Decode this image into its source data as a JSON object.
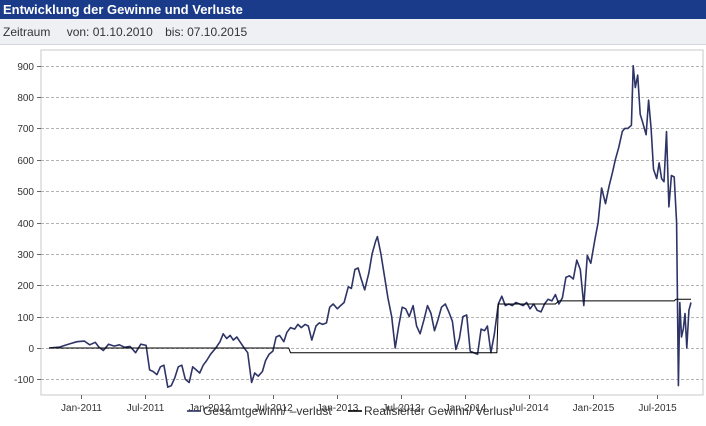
{
  "panel": {
    "title": "Entwicklung der Gewinne und Verluste",
    "range_label": "Zeitraum",
    "from_label": "von: 01.10.2010",
    "to_label": "bis: 07.10.2015"
  },
  "colors": {
    "header_bg": "#1a3a8a",
    "series_total": "#2e3466",
    "series_realized": "#000000",
    "grid": "#9a9a9a"
  },
  "chart_data": {
    "type": "line",
    "title": "",
    "xlabel": "",
    "ylabel": "",
    "xlim": [
      "2010-10-01",
      "2015-10-07"
    ],
    "ylim": [
      -150,
      950
    ],
    "y_ticks": [
      -100,
      0,
      100,
      200,
      300,
      400,
      500,
      600,
      700,
      800,
      900
    ],
    "x_ticks": [
      {
        "date": "2011-01-01",
        "label": "Jan-2011"
      },
      {
        "date": "2011-07-01",
        "label": "Jul-2011"
      },
      {
        "date": "2012-01-01",
        "label": "Jan-2012"
      },
      {
        "date": "2012-07-01",
        "label": "Jul-2012"
      },
      {
        "date": "2013-01-01",
        "label": "Jan-2013"
      },
      {
        "date": "2013-07-01",
        "label": "Jul-2013"
      },
      {
        "date": "2014-01-01",
        "label": "Jan-2014"
      },
      {
        "date": "2014-07-01",
        "label": "Jul-2014"
      },
      {
        "date": "2015-01-01",
        "label": "Jan-2015"
      },
      {
        "date": "2015-07-01",
        "label": "Jul-2015"
      }
    ],
    "grid": "horizontal dashed",
    "legend": "bottom-center",
    "series": [
      {
        "name": "Gesamtgewinn/ –verlust",
        "points": [
          [
            "2010-10-01",
            0
          ],
          [
            "2010-11-01",
            3
          ],
          [
            "2010-11-15",
            8
          ],
          [
            "2010-12-01",
            14
          ],
          [
            "2010-12-20",
            20
          ],
          [
            "2011-01-10",
            22
          ],
          [
            "2011-01-25",
            10
          ],
          [
            "2011-02-10",
            18
          ],
          [
            "2011-02-20",
            3
          ],
          [
            "2011-03-05",
            -8
          ],
          [
            "2011-03-20",
            12
          ],
          [
            "2011-04-05",
            6
          ],
          [
            "2011-04-20",
            10
          ],
          [
            "2011-05-05",
            2
          ],
          [
            "2011-05-20",
            5
          ],
          [
            "2011-06-05",
            -15
          ],
          [
            "2011-06-20",
            12
          ],
          [
            "2011-07-05",
            8
          ],
          [
            "2011-07-15",
            -70
          ],
          [
            "2011-07-25",
            -75
          ],
          [
            "2011-08-05",
            -85
          ],
          [
            "2011-08-15",
            -60
          ],
          [
            "2011-08-25",
            -55
          ],
          [
            "2011-09-05",
            -125
          ],
          [
            "2011-09-15",
            -120
          ],
          [
            "2011-09-25",
            -95
          ],
          [
            "2011-10-05",
            -60
          ],
          [
            "2011-10-15",
            -55
          ],
          [
            "2011-10-25",
            -100
          ],
          [
            "2011-11-05",
            -110
          ],
          [
            "2011-11-15",
            -60
          ],
          [
            "2011-11-25",
            -70
          ],
          [
            "2011-12-05",
            -80
          ],
          [
            "2011-12-15",
            -55
          ],
          [
            "2011-12-25",
            -40
          ],
          [
            "2012-01-05",
            -20
          ],
          [
            "2012-01-20",
            0
          ],
          [
            "2012-02-01",
            20
          ],
          [
            "2012-02-10",
            45
          ],
          [
            "2012-02-20",
            30
          ],
          [
            "2012-03-01",
            40
          ],
          [
            "2012-03-10",
            25
          ],
          [
            "2012-03-20",
            35
          ],
          [
            "2012-04-01",
            15
          ],
          [
            "2012-04-10",
            0
          ],
          [
            "2012-04-20",
            -15
          ],
          [
            "2012-05-01",
            -110
          ],
          [
            "2012-05-10",
            -80
          ],
          [
            "2012-05-20",
            -90
          ],
          [
            "2012-06-01",
            -75
          ],
          [
            "2012-06-10",
            -40
          ],
          [
            "2012-06-20",
            -20
          ],
          [
            "2012-07-01",
            -10
          ],
          [
            "2012-07-10",
            35
          ],
          [
            "2012-07-20",
            40
          ],
          [
            "2012-08-01",
            20
          ],
          [
            "2012-08-10",
            50
          ],
          [
            "2012-08-20",
            65
          ],
          [
            "2012-09-01",
            60
          ],
          [
            "2012-09-10",
            75
          ],
          [
            "2012-09-20",
            65
          ],
          [
            "2012-10-01",
            75
          ],
          [
            "2012-10-10",
            70
          ],
          [
            "2012-10-20",
            25
          ],
          [
            "2012-11-01",
            70
          ],
          [
            "2012-11-10",
            80
          ],
          [
            "2012-11-20",
            75
          ],
          [
            "2012-12-01",
            80
          ],
          [
            "2012-12-10",
            130
          ],
          [
            "2012-12-20",
            140
          ],
          [
            "2013-01-01",
            125
          ],
          [
            "2013-01-10",
            135
          ],
          [
            "2013-01-20",
            145
          ],
          [
            "2013-02-01",
            195
          ],
          [
            "2013-02-10",
            190
          ],
          [
            "2013-02-20",
            250
          ],
          [
            "2013-03-01",
            255
          ],
          [
            "2013-03-10",
            220
          ],
          [
            "2013-03-20",
            185
          ],
          [
            "2013-04-01",
            240
          ],
          [
            "2013-04-10",
            300
          ],
          [
            "2013-04-20",
            340
          ],
          [
            "2013-04-25",
            355
          ],
          [
            "2013-05-05",
            300
          ],
          [
            "2013-05-15",
            230
          ],
          [
            "2013-05-25",
            160
          ],
          [
            "2013-06-05",
            100
          ],
          [
            "2013-06-15",
            0
          ],
          [
            "2013-06-25",
            70
          ],
          [
            "2013-07-05",
            130
          ],
          [
            "2013-07-15",
            125
          ],
          [
            "2013-07-25",
            100
          ],
          [
            "2013-08-05",
            135
          ],
          [
            "2013-08-15",
            70
          ],
          [
            "2013-08-25",
            45
          ],
          [
            "2013-09-05",
            90
          ],
          [
            "2013-09-15",
            135
          ],
          [
            "2013-09-25",
            110
          ],
          [
            "2013-10-05",
            55
          ],
          [
            "2013-10-15",
            90
          ],
          [
            "2013-10-25",
            130
          ],
          [
            "2013-11-05",
            140
          ],
          [
            "2013-11-15",
            115
          ],
          [
            "2013-11-25",
            85
          ],
          [
            "2013-12-05",
            -5
          ],
          [
            "2013-12-15",
            30
          ],
          [
            "2013-12-25",
            100
          ],
          [
            "2014-01-05",
            105
          ],
          [
            "2014-01-15",
            -10
          ],
          [
            "2014-01-25",
            -15
          ],
          [
            "2014-02-05",
            -20
          ],
          [
            "2014-02-15",
            60
          ],
          [
            "2014-02-25",
            55
          ],
          [
            "2014-03-05",
            70
          ],
          [
            "2014-03-15",
            -15
          ],
          [
            "2014-03-25",
            45
          ],
          [
            "2014-04-05",
            140
          ],
          [
            "2014-04-15",
            165
          ],
          [
            "2014-04-25",
            135
          ],
          [
            "2014-05-05",
            140
          ],
          [
            "2014-05-15",
            135
          ],
          [
            "2014-05-25",
            145
          ],
          [
            "2014-06-05",
            140
          ],
          [
            "2014-06-15",
            135
          ],
          [
            "2014-06-25",
            145
          ],
          [
            "2014-07-05",
            125
          ],
          [
            "2014-07-15",
            140
          ],
          [
            "2014-07-25",
            120
          ],
          [
            "2014-08-05",
            115
          ],
          [
            "2014-08-15",
            140
          ],
          [
            "2014-08-25",
            155
          ],
          [
            "2014-09-05",
            150
          ],
          [
            "2014-09-15",
            170
          ],
          [
            "2014-09-25",
            140
          ],
          [
            "2014-10-05",
            160
          ],
          [
            "2014-10-15",
            225
          ],
          [
            "2014-10-25",
            230
          ],
          [
            "2014-11-05",
            220
          ],
          [
            "2014-11-15",
            280
          ],
          [
            "2014-11-25",
            250
          ],
          [
            "2014-12-05",
            135
          ],
          [
            "2014-12-15",
            295
          ],
          [
            "2014-12-25",
            270
          ],
          [
            "2015-01-05",
            340
          ],
          [
            "2015-01-15",
            400
          ],
          [
            "2015-01-25",
            510
          ],
          [
            "2015-02-05",
            460
          ],
          [
            "2015-02-15",
            515
          ],
          [
            "2015-02-25",
            560
          ],
          [
            "2015-03-05",
            600
          ],
          [
            "2015-03-15",
            640
          ],
          [
            "2015-03-25",
            690
          ],
          [
            "2015-04-01",
            700
          ],
          [
            "2015-04-10",
            700
          ],
          [
            "2015-04-20",
            710
          ],
          [
            "2015-04-25",
            900
          ],
          [
            "2015-05-01",
            830
          ],
          [
            "2015-05-08",
            870
          ],
          [
            "2015-05-15",
            745
          ],
          [
            "2015-05-22",
            720
          ],
          [
            "2015-06-01",
            680
          ],
          [
            "2015-06-08",
            790
          ],
          [
            "2015-06-15",
            700
          ],
          [
            "2015-06-22",
            570
          ],
          [
            "2015-07-01",
            540
          ],
          [
            "2015-07-08",
            590
          ],
          [
            "2015-07-15",
            540
          ],
          [
            "2015-07-22",
            530
          ],
          [
            "2015-07-29",
            690
          ],
          [
            "2015-08-05",
            450
          ],
          [
            "2015-08-12",
            550
          ],
          [
            "2015-08-20",
            545
          ],
          [
            "2015-08-27",
            400
          ],
          [
            "2015-09-01",
            -120
          ],
          [
            "2015-09-05",
            145
          ],
          [
            "2015-09-10",
            35
          ],
          [
            "2015-09-15",
            60
          ],
          [
            "2015-09-20",
            110
          ],
          [
            "2015-09-25",
            0
          ],
          [
            "2015-10-01",
            120
          ],
          [
            "2015-10-07",
            145
          ]
        ]
      },
      {
        "name": "Realisierter Gewinn/ Verlust",
        "points": [
          [
            "2010-10-01",
            0
          ],
          [
            "2012-08-15",
            0
          ],
          [
            "2012-08-20",
            -15
          ],
          [
            "2014-04-01",
            -15
          ],
          [
            "2014-04-05",
            140
          ],
          [
            "2014-09-15",
            140
          ],
          [
            "2014-09-25",
            150
          ],
          [
            "2015-08-20",
            150
          ],
          [
            "2015-08-25",
            155
          ],
          [
            "2015-10-07",
            155
          ]
        ]
      }
    ]
  }
}
